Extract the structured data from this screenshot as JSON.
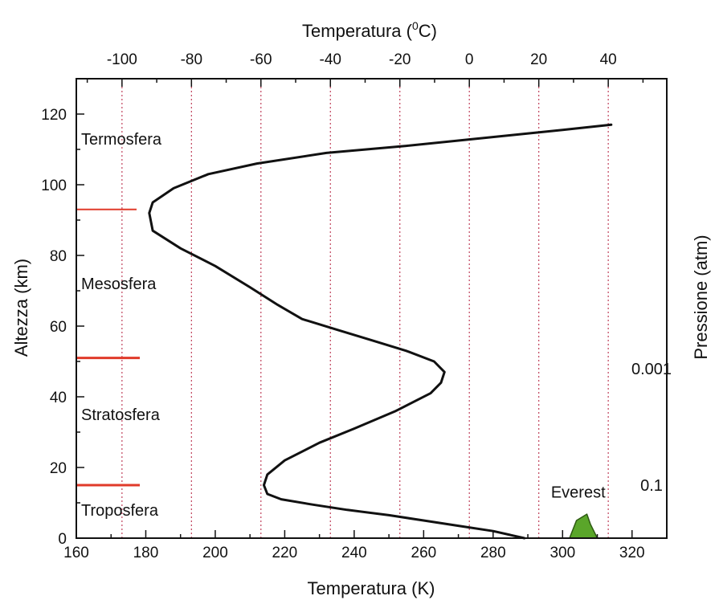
{
  "chart_data": {
    "type": "line",
    "xlabel": "Temperatura (K)",
    "ylabel": "Altezza (km)",
    "x2label_main": "Temperatura (",
    "x2label_sup": "0",
    "x2label_end": "C)",
    "y2label": "Pressione (atm)",
    "xlim": [
      160,
      330
    ],
    "ylim": [
      0,
      130
    ],
    "x2lim": [
      -113.15,
      56.85
    ],
    "xticks": [
      160,
      180,
      200,
      220,
      240,
      260,
      280,
      300,
      320
    ],
    "yticks": [
      0,
      20,
      40,
      60,
      80,
      100,
      120
    ],
    "x2ticks": [
      -100,
      -80,
      -60,
      -40,
      -20,
      0,
      20,
      40
    ],
    "grid": "dotted vertical lines at Celsius ticks",
    "grid_color": "#c0405a",
    "line_color": "#111111",
    "series": [
      {
        "x": [
          289,
          280,
          270,
          260,
          250,
          238,
          228,
          219,
          215,
          214,
          215,
          220,
          230,
          240,
          252,
          262,
          265,
          266,
          263,
          255,
          245,
          235,
          225,
          218,
          210,
          200,
          190,
          182,
          181,
          182,
          188,
          198,
          212,
          232,
          255,
          270,
          285,
          300,
          314
        ],
        "y": [
          0,
          2,
          3.5,
          5,
          6.5,
          8,
          9.5,
          11,
          12.5,
          15,
          18,
          22,
          27,
          31,
          36,
          41,
          44,
          47,
          50,
          53,
          56,
          59,
          62,
          66,
          71,
          77,
          82,
          87,
          92,
          95,
          99,
          103,
          106,
          109,
          111,
          112.5,
          114,
          115.5,
          117
        ]
      }
    ],
    "layers": [
      {
        "name": "Termosfera",
        "y": 113
      },
      {
        "name": "Mesosfera",
        "y": 72
      },
      {
        "name": "Stratosfera",
        "y": 35
      },
      {
        "name": "Troposfera",
        "y": 8
      }
    ],
    "boundaries": [
      93,
      51,
      15
    ],
    "boundary_color": "#e03a2a",
    "pressure_labels": [
      {
        "text": "0.001",
        "y": 48
      },
      {
        "text": "0.1",
        "y": 15
      }
    ],
    "everest": {
      "label": "Everest",
      "color": "#5aa62a",
      "x": [
        302,
        304,
        307,
        308,
        310
      ],
      "y": [
        0,
        5,
        6.8,
        4,
        0
      ]
    }
  }
}
